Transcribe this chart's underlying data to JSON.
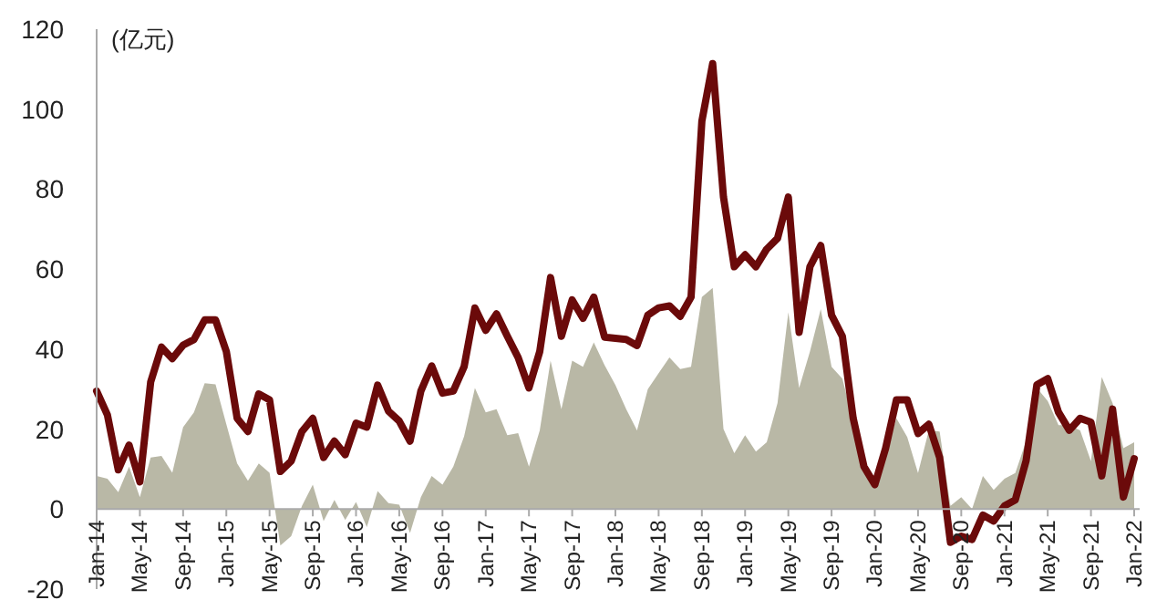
{
  "chart_data": {
    "type": "line",
    "ylabel": "(亿元)",
    "categories": [
      "Jan-14",
      null,
      null,
      null,
      "May-14",
      null,
      null,
      null,
      "Sep-14",
      null,
      null,
      null,
      "Jan-15",
      null,
      null,
      null,
      "May-15",
      null,
      null,
      null,
      "Sep-15",
      null,
      null,
      null,
      "Jan-16",
      null,
      null,
      null,
      "May-16",
      null,
      null,
      null,
      "Sep-16",
      null,
      null,
      null,
      "Jan-17",
      null,
      null,
      null,
      "May-17",
      null,
      null,
      null,
      "Sep-17",
      null,
      null,
      null,
      "Jan-18",
      null,
      null,
      null,
      "May-18",
      null,
      null,
      null,
      "Sep-18",
      null,
      null,
      null,
      "Jan-19",
      null,
      null,
      null,
      "May-19",
      null,
      null,
      null,
      "Sep-19",
      null,
      null,
      null,
      "Jan-20",
      null,
      null,
      null,
      "May-20",
      null,
      null,
      null,
      "Sep-20",
      null,
      null,
      null,
      "Jan-21",
      null,
      null,
      null,
      "May-21",
      null,
      null,
      null,
      "Sep-21",
      null,
      null,
      null,
      "Jan-22"
    ],
    "series": [
      {
        "type": "area",
        "color": "#b9b8a6",
        "values": [
          8.3,
          7.6,
          4.2,
          10.6,
          3,
          12.9,
          13.3,
          9.1,
          20.5,
          24.2,
          31.5,
          31.2,
          21.2,
          11.4,
          7.1,
          11.4,
          9.1,
          -9.1,
          -6.8,
          0.8,
          6.1,
          -3,
          2.3,
          -2.7,
          1.8,
          -4.5,
          4.5,
          1.5,
          1.1,
          -6,
          3,
          8.3,
          6.1,
          10.6,
          18.2,
          30.3,
          24.2,
          25,
          18.5,
          19,
          10.6,
          19.7,
          37.1,
          25,
          37.1,
          35.6,
          41.7,
          36,
          31,
          25,
          19.7,
          30,
          34,
          37.9,
          35,
          35.6,
          53,
          55.3,
          20,
          14,
          18.5,
          14.4,
          16.7,
          26.5,
          49.2,
          30.3,
          39.4,
          50,
          35.6,
          32.6,
          22,
          12,
          5,
          14,
          22.7,
          18,
          9,
          19.7,
          19.4,
          0.8,
          3,
          0,
          8.3,
          4.8,
          7.6,
          9,
          17,
          30.3,
          27,
          21,
          21,
          19.7,
          12,
          33,
          26.5,
          15.2,
          16.7
        ]
      },
      {
        "type": "line",
        "color": "#6b0a0a",
        "values": [
          29.5,
          23.5,
          9.8,
          16,
          6.8,
          31.8,
          40.5,
          37.6,
          41,
          42.4,
          47.3,
          47.3,
          39.4,
          22.7,
          19.4,
          28.8,
          27.3,
          9.4,
          12,
          19.4,
          22.7,
          12.9,
          17,
          13.6,
          21.5,
          20.5,
          31,
          24.5,
          22,
          17,
          29.5,
          35.8,
          29,
          29.5,
          35.6,
          50.3,
          44.7,
          48.8,
          43.2,
          37.9,
          30.3,
          39.4,
          57.9,
          43.2,
          52.3,
          47.7,
          53,
          43,
          42.7,
          42.4,
          40.9,
          48.5,
          50.3,
          50.8,
          48.2,
          53,
          97,
          111.4,
          78,
          60.6,
          63.6,
          60.6,
          65,
          67.7,
          78,
          44.2,
          60.6,
          65.9,
          48.5,
          43.2,
          22.7,
          10.6,
          6.1,
          15.2,
          27.3,
          27.3,
          18.9,
          21.2,
          12.9,
          -8.3,
          -6.8,
          -7.6,
          -1.5,
          -3,
          0.8,
          2.3,
          12.1,
          31.1,
          32.6,
          24.2,
          19.7,
          22.7,
          21.7,
          8.3,
          25,
          3,
          12.6
        ]
      }
    ],
    "ylim": [
      -20,
      120
    ],
    "yticks": [
      -20,
      0,
      20,
      40,
      60,
      80,
      100,
      120
    ],
    "grid": false
  }
}
